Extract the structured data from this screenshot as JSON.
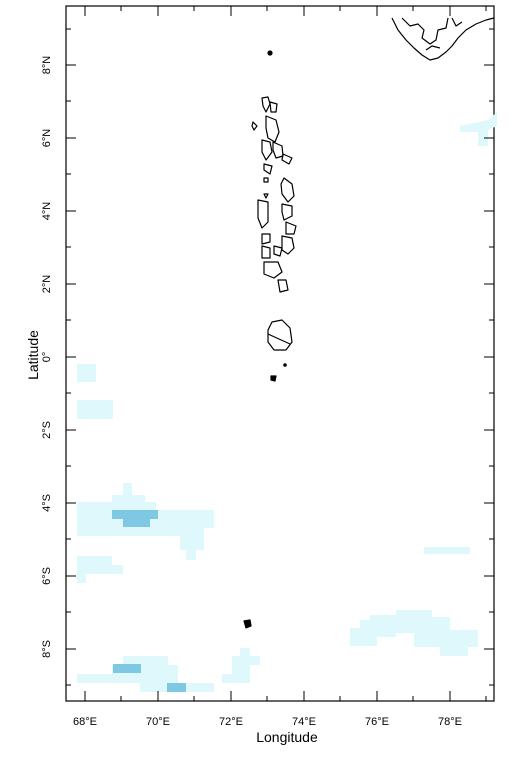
{
  "map": {
    "xlabel": "Longitude",
    "ylabel": "Latitude",
    "lon_range": [
      67.5,
      79.5
    ],
    "lat_range": [
      -9.2,
      9.5
    ],
    "x_ticks": [
      "68°E",
      "70°E",
      "72°E",
      "74°E",
      "76°E",
      "78°E"
    ],
    "y_ticks": [
      "8°N",
      "6°N",
      "4°N",
      "2°N",
      "0°",
      "2°S",
      "4°S",
      "6°S",
      "8°S"
    ],
    "colors": {
      "light_fill": "#dff8fb",
      "dark_fill": "#7ec8e3",
      "outline": "#000000"
    }
  }
}
